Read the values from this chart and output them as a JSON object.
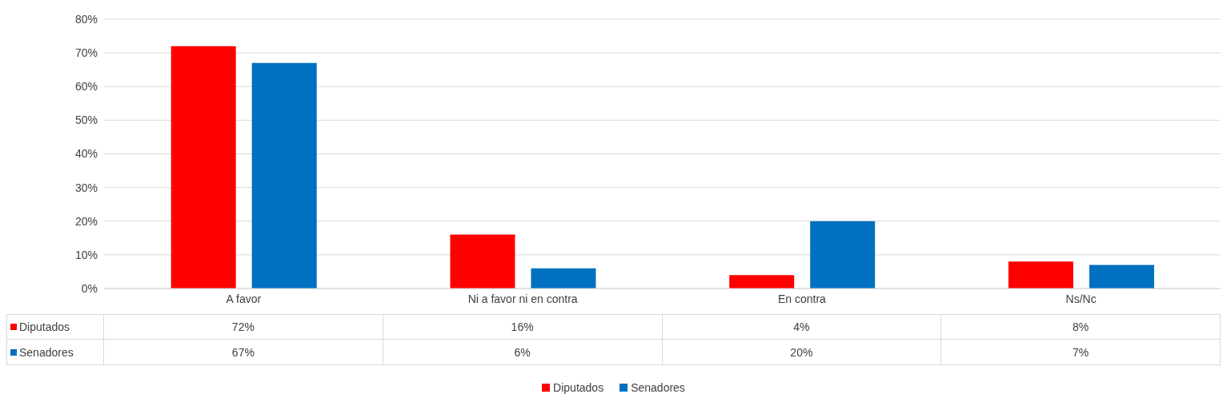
{
  "chart_data": {
    "type": "bar",
    "categories": [
      "A favor",
      "Ni a favor ni en contra",
      "En contra",
      "Ns/Nc"
    ],
    "series": [
      {
        "name": "Diputados",
        "color": "#ff0000",
        "values": [
          72,
          16,
          4,
          8
        ],
        "value_labels": [
          "72%",
          "16%",
          "4%",
          "8%"
        ]
      },
      {
        "name": "Senadores",
        "color": "#0070c0",
        "values": [
          67,
          6,
          20,
          7
        ],
        "value_labels": [
          "67%",
          "6%",
          "20%",
          "7%"
        ]
      }
    ],
    "ylim": [
      0,
      80
    ],
    "yticks": [
      {
        "value": 0,
        "label": "0%"
      },
      {
        "value": 10,
        "label": "10%"
      },
      {
        "value": 20,
        "label": "20%"
      },
      {
        "value": 30,
        "label": "30%"
      },
      {
        "value": 40,
        "label": "40%"
      },
      {
        "value": 50,
        "label": "50%"
      },
      {
        "value": 60,
        "label": "60%"
      },
      {
        "value": 70,
        "label": "70%"
      },
      {
        "value": 80,
        "label": "80%"
      }
    ],
    "grid": "y",
    "legend": "bottom"
  }
}
